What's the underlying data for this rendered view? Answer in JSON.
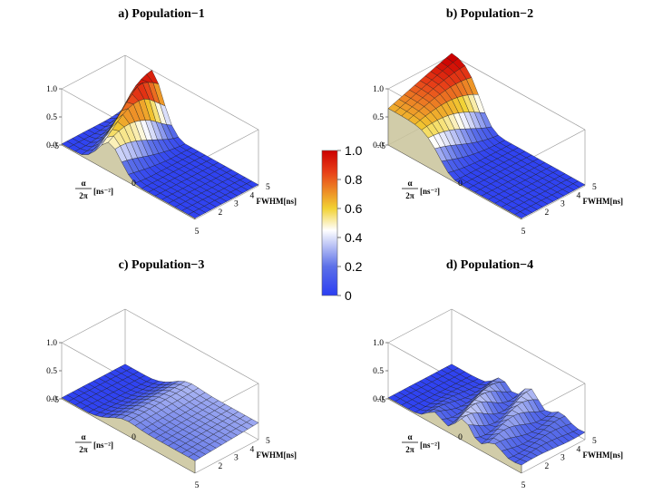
{
  "figure": {
    "colorbar": {
      "ticks": [
        "0",
        "0.2",
        "0.4",
        "0.6",
        "0.8",
        "1.0"
      ],
      "tick_values": [
        0,
        0.2,
        0.4,
        0.6,
        0.8,
        1.0
      ],
      "colormap": [
        "#2b3ef2",
        "#5c70e8",
        "#ffffff",
        "#f2d233",
        "#e84018",
        "#cc0000"
      ]
    }
  },
  "chart_data": [
    {
      "type": "surface3d",
      "title": "a) Population−1",
      "xlabel": "α/2π [ns⁻²]",
      "alpha_label": "α",
      "two_pi_label": "2π",
      "unit_label": "[ns⁻²]",
      "ylabel": "FWHM[ns]",
      "x_range": [
        -5,
        5
      ],
      "y_range": [
        1,
        5
      ],
      "z_range": [
        0,
        1
      ],
      "x_ticks": [
        "−5",
        "0",
        "5"
      ],
      "y_ticks": [
        "2",
        "3",
        "4",
        "5"
      ],
      "z_ticks": [
        "0.0",
        "0.5",
        "1.0"
      ],
      "surface": "valley-to-peak ridge",
      "peak_population": 1.0
    },
    {
      "type": "surface3d",
      "title": "b) Population−2",
      "xlabel": "α/2π [ns⁻²]",
      "alpha_label": "α",
      "two_pi_label": "2π",
      "unit_label": "[ns⁻²]",
      "ylabel": "FWHM[ns]",
      "x_range": [
        -5,
        5
      ],
      "y_range": [
        1,
        5
      ],
      "z_range": [
        0,
        1
      ],
      "x_ticks": [
        "−5",
        "0",
        "5"
      ],
      "y_ticks": [
        "2",
        "3",
        "4",
        "5"
      ],
      "z_ticks": [
        "0.0",
        "0.5",
        "1.0"
      ],
      "surface": "high plateau for negative alpha",
      "peak_population": 1.0
    },
    {
      "type": "surface3d",
      "title": "c) Population−3",
      "xlabel": "α/2π [ns⁻²]",
      "alpha_label": "α",
      "two_pi_label": "2π",
      "unit_label": "[ns⁻²]",
      "ylabel": "FWHM[ns]",
      "x_range": [
        -5,
        5
      ],
      "y_range": [
        1,
        5
      ],
      "z_range": [
        0,
        1
      ],
      "x_ticks": [
        "−5",
        "0",
        "5"
      ],
      "y_ticks": [
        "2",
        "3",
        "4",
        "5"
      ],
      "z_ticks": [
        "0.0",
        "0.5",
        "1.0"
      ],
      "surface": "low plateau near 0.3",
      "peak_population": 0.35
    },
    {
      "type": "surface3d",
      "title": "d) Population−4",
      "xlabel": "α/2π [ns⁻²]",
      "alpha_label": "α",
      "two_pi_label": "2π",
      "unit_label": "[ns⁻²]",
      "ylabel": "FWHM[ns]",
      "x_range": [
        -5,
        5
      ],
      "y_range": [
        1,
        5
      ],
      "z_range": [
        0,
        1
      ],
      "x_ticks": [
        "−5",
        "0",
        "5"
      ],
      "y_ticks": [
        "2",
        "3",
        "4",
        "5"
      ],
      "z_ticks": [
        "0.0",
        "0.5",
        "1.0"
      ],
      "surface": "oscillating ridge",
      "peak_population": 0.45
    }
  ]
}
